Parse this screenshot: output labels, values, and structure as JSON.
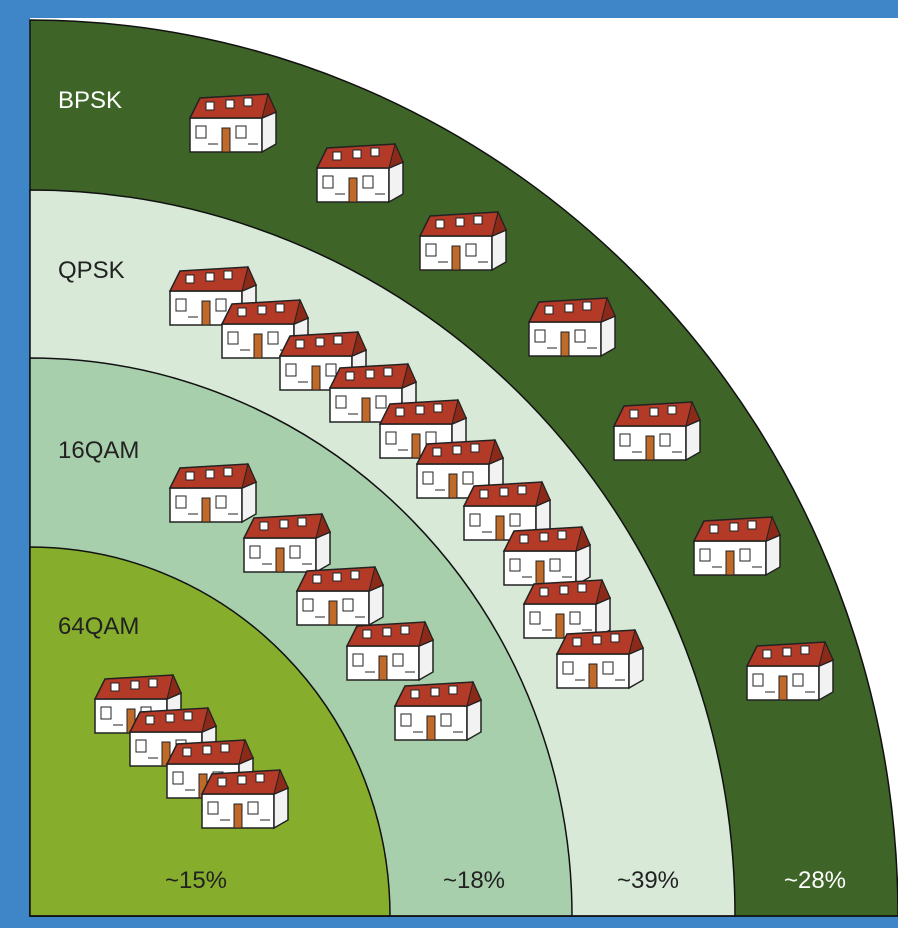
{
  "bands": [
    {
      "label": "64QAM",
      "share": "~15%"
    },
    {
      "label": "16QAM",
      "share": "~18%"
    },
    {
      "label": "QPSK",
      "share": "~39%"
    },
    {
      "label": "BPSK",
      "share": "~28%"
    }
  ]
}
